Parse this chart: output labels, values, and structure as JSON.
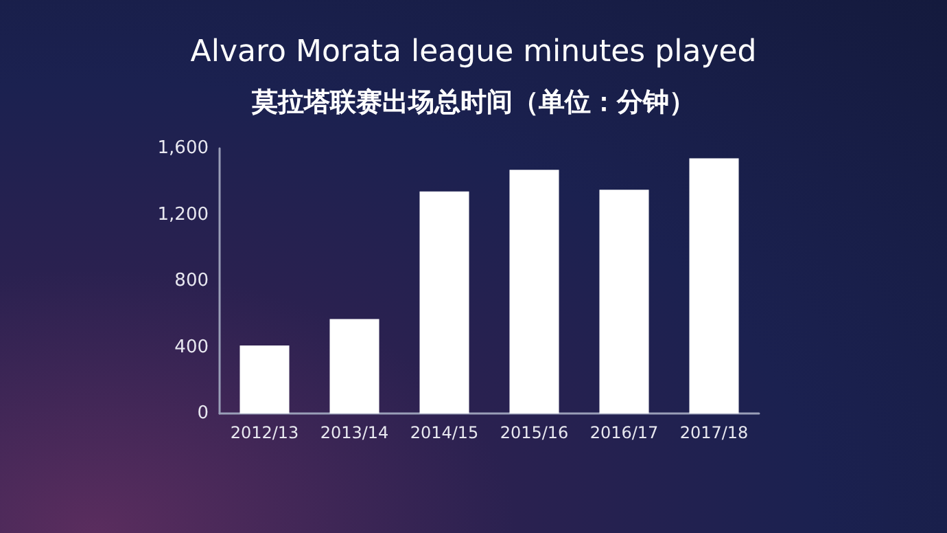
{
  "chart_data": {
    "type": "bar",
    "title": "Alvaro Morata league minutes played",
    "subtitle": "莫拉塔联赛出场总时间（单位：分钟）",
    "categories": [
      "2012/13",
      "2013/14",
      "2014/15",
      "2015/16",
      "2016/17",
      "2017/18"
    ],
    "values": [
      410,
      570,
      1340,
      1470,
      1350,
      1540
    ],
    "color": "#ffffff",
    "ylim": [
      0,
      1600
    ],
    "yticks": [
      {
        "value": 0,
        "label": "0"
      },
      {
        "value": 400,
        "label": "400"
      },
      {
        "value": 800,
        "label": "800"
      },
      {
        "value": 1200,
        "label": "1,200"
      },
      {
        "value": 1600,
        "label": "1,600"
      }
    ],
    "grid": false
  }
}
